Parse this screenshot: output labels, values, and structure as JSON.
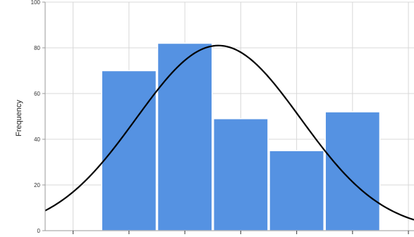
{
  "chart_data": {
    "type": "bar",
    "title": "",
    "xlabel": "",
    "ylabel": "Frequency",
    "ylim": [
      0,
      100
    ],
    "xlim": [
      0,
      6.6
    ],
    "y_ticks": [
      0,
      20,
      40,
      60,
      80,
      100
    ],
    "y_tick_labels": [
      "0",
      "20",
      "40",
      "60",
      "80",
      "100"
    ],
    "x_ticks": [
      0.5,
      1.5,
      2.5,
      3.5,
      4.5,
      5.5,
      6.5
    ],
    "bins": [
      {
        "start": 1.0,
        "end": 2.0,
        "value": 70
      },
      {
        "start": 2.0,
        "end": 3.0,
        "value": 82
      },
      {
        "start": 3.0,
        "end": 4.0,
        "value": 49
      },
      {
        "start": 4.0,
        "end": 5.0,
        "value": 35
      },
      {
        "start": 5.0,
        "end": 6.0,
        "value": 52
      }
    ],
    "normal_curve": {
      "peak": 81,
      "mean": 3.1,
      "sd": 1.47
    },
    "grid": true,
    "legend": "none",
    "colors": {
      "bar": "#5592e2",
      "bar_edge": "#ffffff",
      "curve": "#000000",
      "grid": "#d8d8d8",
      "axis": "#9a9a9a"
    }
  }
}
